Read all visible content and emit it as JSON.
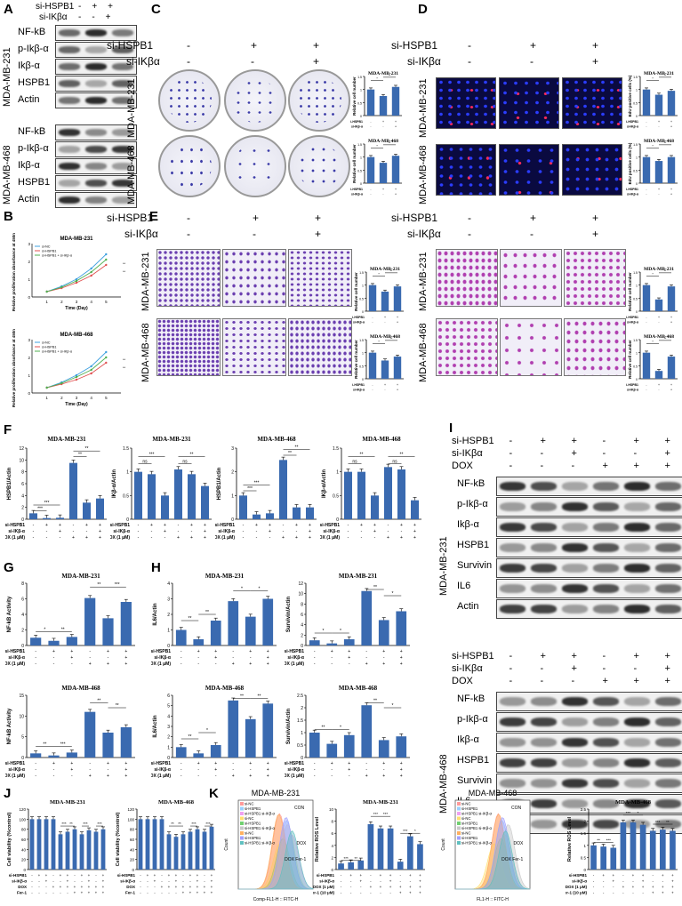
{
  "panels": {
    "A": "A",
    "B": "B",
    "C": "C",
    "D": "D",
    "E": "E",
    "F": "F",
    "G": "G",
    "H": "H",
    "I": "I",
    "J": "J",
    "K": "K"
  },
  "treat": {
    "sihspb1": "si-HSPB1",
    "siikba": "si-IKβα",
    "dox": "DOX",
    "minus": "-",
    "plus": "+"
  },
  "cells": {
    "mda231": "MDA-MB-231",
    "mda468": "MDA-MB-468"
  },
  "wb_a": {
    "labels231": [
      "NF-kB",
      "p-Ikβ-α",
      "Ikβ-α",
      "HSPB1",
      "Actin"
    ],
    "labels468": [
      "NF-kB",
      "p-Ikβ-α",
      "Ikβ-α",
      "HSPB1",
      "Actin"
    ]
  },
  "wb_i": {
    "labels": [
      "NF-kB",
      "p-Ikβ-α",
      "Ikβ-α",
      "HSPB1",
      "Survivin",
      "IL6",
      "Actin"
    ]
  },
  "row_signs": {
    "three_hspb1": [
      "-",
      "+",
      "+"
    ],
    "three_ikba": [
      "-",
      "-",
      "+"
    ],
    "six_hspb1": [
      "-",
      "+",
      "+",
      "-",
      "+",
      "+"
    ],
    "six_ikba": [
      "-",
      "-",
      "+",
      "-",
      "-",
      "+"
    ],
    "six_dox": [
      "-",
      "-",
      "-",
      "+",
      "+",
      "+"
    ]
  },
  "axis_labels": {
    "colony": "Relative cell number",
    "edu": "EdU positive cells (%)",
    "prolif": "Relative proliferation absorbance at 450nm",
    "time": "Time (Day)",
    "hspb1_actin": "HSPB1/Actin",
    "ikb_actin": "IKβ-α/Actin",
    "nfkb": "NF-kB Activity",
    "il6": "IL6/Actin",
    "surv": "Survivin/Actin",
    "viab": "Cell viability (%control)",
    "ros": "Relative ROS Level",
    "count": "Count",
    "fitc1": "Comp-FL1-H :: FITC-H",
    "fitc2": "FL1-H :: FITC-H"
  },
  "row_labels": {
    "sihspb1": "si-HSPB1",
    "sikba": "si-IKβ-α",
    "dox": "DOX (1 μM)",
    "fer": "Fer-1",
    "fer10": "Fer-1 (10 μM)",
    "doxplain": "DOX"
  },
  "legend_b": [
    "si-NC",
    "si-HSPB1",
    "si-HSPB1 + si-IKβ-α"
  ],
  "legend_k": [
    "si-NC",
    "si-HSPB1",
    "si-HSPB1 si-IKβ-α",
    "si-NC",
    "si-HSPB1",
    "si-HSPB1 si-IKβ-α",
    "si-NC",
    "si-HSPB1",
    "si-HSPB1 si-IKβ-α"
  ],
  "hist_labels": {
    "con": "CON",
    "dox": "DOX",
    "fer": "DOX Fer-1"
  },
  "sig": {
    "s1": "*",
    "s2": "**",
    "s3": "***",
    "ns": "ns"
  },
  "colors": {
    "bar": "#3a6ab0",
    "err": "#000"
  },
  "chart_data": [
    {
      "id": "C-231",
      "type": "bar",
      "title": "MDA-MB-231",
      "ylabel": "Relative cell number",
      "ylim": [
        0,
        1.5
      ],
      "values": [
        1.0,
        0.75,
        1.1
      ]
    },
    {
      "id": "C-468",
      "type": "bar",
      "title": "MDA-MB-468",
      "ylabel": "Relative cell number",
      "ylim": [
        0,
        1.5
      ],
      "values": [
        1.0,
        0.78,
        1.05
      ]
    },
    {
      "id": "D-231",
      "type": "bar",
      "title": "MDA-MB-231",
      "ylabel": "EdU positive cells (%)",
      "ylim": [
        0,
        1.5
      ],
      "values": [
        1.0,
        0.8,
        0.95
      ]
    },
    {
      "id": "D-468",
      "type": "bar",
      "title": "MDA-MB-468",
      "ylabel": "EdU positive cells (%)",
      "ylim": [
        0,
        1.5
      ],
      "values": [
        1.0,
        0.85,
        1.0
      ]
    },
    {
      "id": "E1-231",
      "type": "bar",
      "title": "MDA-MB-231",
      "ylabel": "Relative cell number",
      "ylim": [
        0,
        1.5
      ],
      "values": [
        1.0,
        0.75,
        0.95
      ]
    },
    {
      "id": "E1-468",
      "type": "bar",
      "title": "MDA-MB-468",
      "ylabel": "Relative cell number",
      "ylim": [
        0,
        1.5
      ],
      "values": [
        1.0,
        0.7,
        0.85
      ]
    },
    {
      "id": "E2-231",
      "type": "bar",
      "title": "MDA-MB-231",
      "ylabel": "Relative cell number",
      "ylim": [
        0,
        1.5
      ],
      "values": [
        1.0,
        0.45,
        0.95
      ]
    },
    {
      "id": "E2-468",
      "type": "bar",
      "title": "MDA-MB-468",
      "ylabel": "Relative cell number",
      "ylim": [
        0,
        1.5
      ],
      "values": [
        1.0,
        0.3,
        0.85
      ]
    },
    {
      "id": "B-231",
      "type": "line",
      "title": "MDA-MB-231",
      "xlabel": "Time (Day)",
      "ylabel": "Relative proliferation absorbance at 450nm",
      "x": [
        1,
        2,
        3,
        4,
        5
      ],
      "series": [
        {
          "name": "si-NC",
          "values": [
            0.3,
            0.6,
            1.0,
            1.6,
            2.4
          ]
        },
        {
          "name": "si-HSPB1",
          "values": [
            0.3,
            0.5,
            0.8,
            1.2,
            1.8
          ]
        },
        {
          "name": "si-HSPB1 + si-IKβ-α",
          "values": [
            0.3,
            0.55,
            0.9,
            1.4,
            2.1
          ]
        }
      ],
      "ylim": [
        0,
        3
      ]
    },
    {
      "id": "B-468",
      "type": "line",
      "title": "MDA-MB-468",
      "xlabel": "Time (Day)",
      "ylabel": "Relative proliferation absorbance at 450nm",
      "x": [
        1,
        2,
        3,
        4,
        5
      ],
      "series": [
        {
          "name": "si-NC",
          "values": [
            0.3,
            0.6,
            1.0,
            1.5,
            2.3
          ]
        },
        {
          "name": "si-HSPB1",
          "values": [
            0.3,
            0.5,
            0.75,
            1.1,
            1.7
          ]
        },
        {
          "name": "si-HSPB1 + si-IKβ-α",
          "values": [
            0.3,
            0.55,
            0.9,
            1.3,
            2.0
          ]
        }
      ],
      "ylim": [
        0,
        3
      ]
    },
    {
      "id": "F1",
      "type": "bar",
      "title": "MDA-MB-231",
      "ylabel": "HSPB1/Actin",
      "ylim": [
        0,
        12
      ],
      "values": [
        1.0,
        0.2,
        0.25,
        9.5,
        2.8,
        3.5
      ]
    },
    {
      "id": "F2",
      "type": "bar",
      "title": "MDA-MB-231",
      "ylabel": "IKβ-α/Actin",
      "ylim": [
        0,
        1.5
      ],
      "values": [
        1.0,
        0.95,
        0.5,
        1.05,
        0.95,
        0.7
      ]
    },
    {
      "id": "F3",
      "type": "bar",
      "title": "MDA-MB-468",
      "ylabel": "HSPB1/Actin",
      "ylim": [
        0,
        3
      ],
      "values": [
        1.0,
        0.2,
        0.25,
        2.5,
        0.5,
        0.5
      ]
    },
    {
      "id": "F4",
      "type": "bar",
      "title": "MDA-MB-468",
      "ylabel": "IKβ-α/Actin",
      "ylim": [
        0,
        1.5
      ],
      "values": [
        1.0,
        1.0,
        0.5,
        1.1,
        1.05,
        0.4
      ]
    },
    {
      "id": "G1",
      "type": "bar",
      "title": "MDA-MB-231",
      "ylabel": "NF-kB Activity",
      "ylim": [
        0,
        8
      ],
      "values": [
        1.0,
        0.6,
        1.1,
        6.1,
        3.5,
        5.6
      ]
    },
    {
      "id": "G2",
      "type": "bar",
      "title": "MDA-MB-468",
      "ylabel": "NF-kB Activity",
      "ylim": [
        0,
        15
      ],
      "values": [
        1.0,
        0.5,
        1.2,
        11.0,
        6.0,
        7.3
      ]
    },
    {
      "id": "H1",
      "type": "bar",
      "title": "MDA-MB-231",
      "ylabel": "IL6/Actin",
      "ylim": [
        0,
        4
      ],
      "values": [
        1.0,
        0.4,
        1.6,
        2.85,
        1.85,
        3.0
      ]
    },
    {
      "id": "H2",
      "type": "bar",
      "title": "MDA-MB-231",
      "ylabel": "Survivin/Actin",
      "ylim": [
        0,
        12
      ],
      "values": [
        1.0,
        0.4,
        1.2,
        10.5,
        4.9,
        6.6
      ]
    },
    {
      "id": "H3",
      "type": "bar",
      "title": "MDA-MB-468",
      "ylabel": "IL6/Actin",
      "ylim": [
        0,
        6
      ],
      "values": [
        1.0,
        0.4,
        1.2,
        5.5,
        3.7,
        5.2
      ]
    },
    {
      "id": "H4",
      "type": "bar",
      "title": "MDA-MB-468",
      "ylabel": "Survivin/Actin",
      "ylim": [
        0,
        2.5
      ],
      "values": [
        1.0,
        0.55,
        0.9,
        2.1,
        0.7,
        0.85
      ]
    },
    {
      "id": "J1",
      "type": "bar",
      "title": "MDA-MB-231",
      "ylabel": "Cell viability (%control)",
      "ylim": [
        0,
        120
      ],
      "values": [
        100,
        100,
        100,
        100,
        70,
        75,
        80,
        70,
        78,
        75,
        80
      ]
    },
    {
      "id": "J2",
      "type": "bar",
      "title": "MDA-MB-468",
      "ylabel": "Cell viability (%control)",
      "ylim": [
        0,
        120
      ],
      "values": [
        100,
        100,
        100,
        100,
        70,
        65,
        70,
        75,
        80,
        75,
        85
      ]
    },
    {
      "id": "K1",
      "type": "bar",
      "title": "MDA-MB-231",
      "ylabel": "Relative ROS Level",
      "ylim": [
        0,
        10
      ],
      "values": [
        1,
        1.2,
        1.5,
        7.5,
        6.8,
        6.8,
        1.3,
        5.5,
        4.2
      ]
    },
    {
      "id": "K2",
      "type": "bar",
      "title": "MDA-MB-468",
      "ylabel": "Relative ROS Level",
      "ylim": [
        0,
        2.5
      ],
      "values": [
        1,
        0.95,
        0.9,
        1.95,
        1.95,
        1.85,
        1.6,
        1.65,
        1.6
      ]
    }
  ]
}
